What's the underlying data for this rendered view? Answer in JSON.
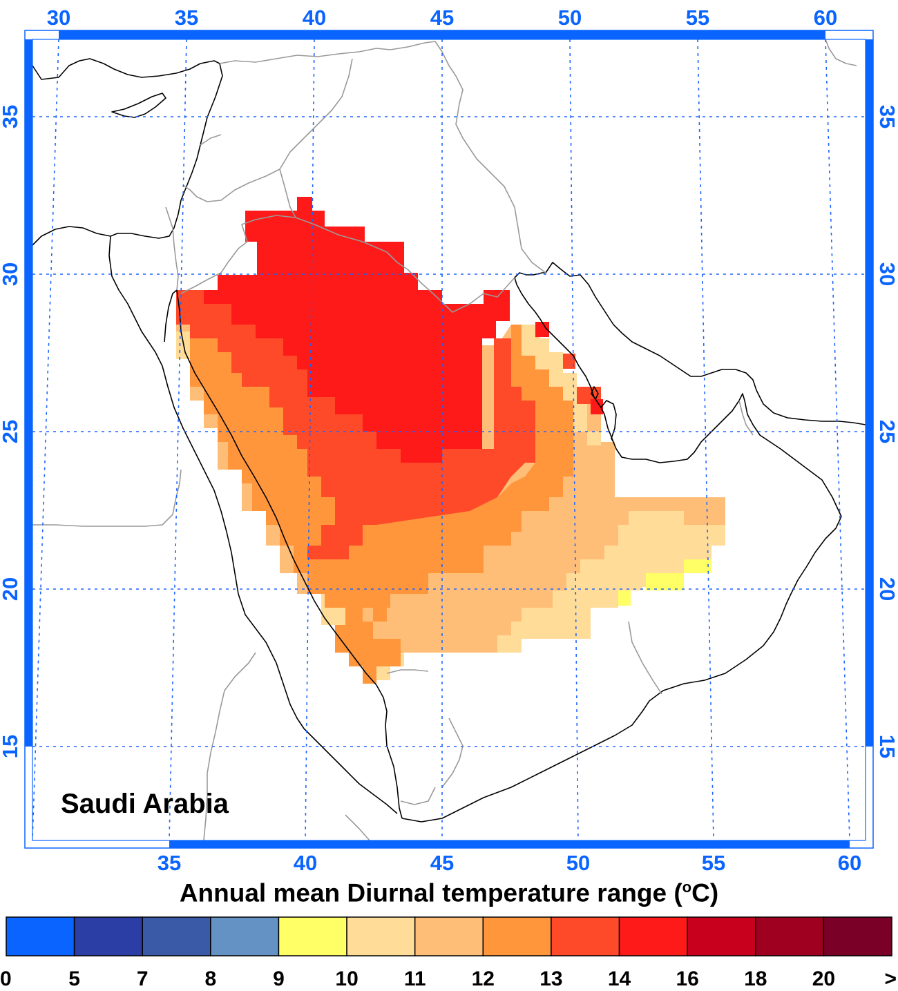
{
  "region_label": "Saudi Arabia",
  "caption": {
    "text": "Annual mean Diurnal temperature range (",
    "sup": "o",
    "unit_tail": "C)"
  },
  "axes": {
    "top_lon_ticks": [
      "30",
      "35",
      "40",
      "45",
      "50",
      "55",
      "60"
    ],
    "bottom_lon_ticks": [
      "35",
      "40",
      "45",
      "50",
      "55",
      "60"
    ],
    "left_lat_ticks": [
      "35",
      "30",
      "25",
      "20",
      "15"
    ],
    "right_lat_ticks": [
      "35",
      "30",
      "25",
      "20",
      "15"
    ]
  },
  "colors": {
    "frame": "#0a64ff",
    "graticule": "#1e64ff"
  },
  "legend": {
    "bins": [
      {
        "color": "#0a64ff"
      },
      {
        "color": "#2b3ea6"
      },
      {
        "color": "#3a5aa8"
      },
      {
        "color": "#6592c4"
      },
      {
        "color": "#ffff66"
      },
      {
        "color": "#ffdd99"
      },
      {
        "color": "#ffbe78"
      },
      {
        "color": "#ff963c"
      },
      {
        "color": "#ff4a2a"
      },
      {
        "color": "#ff1a1a"
      },
      {
        "color": "#c8001e"
      },
      {
        "color": "#a00020"
      },
      {
        "color": "#7a0028"
      }
    ],
    "labels": [
      "0",
      "5",
      "7",
      "8",
      "9",
      "10",
      "11",
      "12",
      "13",
      "14",
      "16",
      "18",
      "20",
      ">"
    ]
  }
}
